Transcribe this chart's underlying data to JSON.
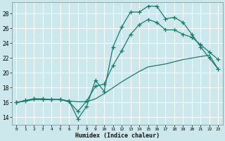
{
  "xlabel": "Humidex (Indice chaleur)",
  "background_color": "#cce8ec",
  "grid_color": "#ffffff",
  "line_color": "#1a7a6e",
  "xlim": [
    -0.5,
    23.5
  ],
  "ylim": [
    13.0,
    29.5
  ],
  "yticks": [
    14,
    16,
    18,
    20,
    22,
    24,
    26,
    28
  ],
  "xticks": [
    0,
    1,
    2,
    3,
    4,
    5,
    6,
    7,
    8,
    9,
    10,
    11,
    12,
    13,
    14,
    15,
    16,
    17,
    18,
    19,
    20,
    21,
    22,
    23
  ],
  "xtick_labels": [
    "0",
    "1",
    "2",
    "3",
    "4",
    "5",
    "6",
    "7",
    "8",
    "9",
    "10",
    "11",
    "12",
    "13",
    "14",
    "15",
    "16",
    "17",
    "18",
    "19",
    "20",
    "21",
    "22",
    "23"
  ],
  "line1_x": [
    0,
    1,
    2,
    3,
    4,
    5,
    6,
    7,
    8,
    9,
    10,
    11,
    12,
    13,
    14,
    15,
    16,
    17,
    18,
    19,
    20,
    21,
    22,
    23
  ],
  "line1_y": [
    16.0,
    16.3,
    16.5,
    16.5,
    16.4,
    16.4,
    16.2,
    13.8,
    15.5,
    19.0,
    17.5,
    23.5,
    26.2,
    28.2,
    28.2,
    29.0,
    29.0,
    27.3,
    27.5,
    26.8,
    25.2,
    23.5,
    22.0,
    20.5
  ],
  "line2_x": [
    0,
    1,
    2,
    3,
    4,
    5,
    6,
    7,
    8,
    9,
    10,
    11,
    12,
    13,
    14,
    15,
    16,
    17,
    18,
    19,
    20,
    21,
    22,
    23
  ],
  "line2_y": [
    16.0,
    16.2,
    16.5,
    16.4,
    16.4,
    16.4,
    16.1,
    14.8,
    16.2,
    18.2,
    18.5,
    21.0,
    23.0,
    25.2,
    26.5,
    27.2,
    26.8,
    25.8,
    25.8,
    25.2,
    24.8,
    23.8,
    22.8,
    21.8
  ],
  "line3_x": [
    0,
    1,
    2,
    3,
    4,
    5,
    6,
    7,
    8,
    9,
    10,
    11,
    12,
    13,
    14,
    15,
    16,
    17,
    18,
    19,
    20,
    21,
    22,
    23
  ],
  "line3_y": [
    16.0,
    16.2,
    16.4,
    16.4,
    16.4,
    16.4,
    16.2,
    16.1,
    16.1,
    16.5,
    17.2,
    18.0,
    18.8,
    19.5,
    20.2,
    20.8,
    21.0,
    21.2,
    21.5,
    21.8,
    22.0,
    22.2,
    22.4,
    20.5
  ],
  "marker_size": 3.5,
  "line_width": 0.9
}
